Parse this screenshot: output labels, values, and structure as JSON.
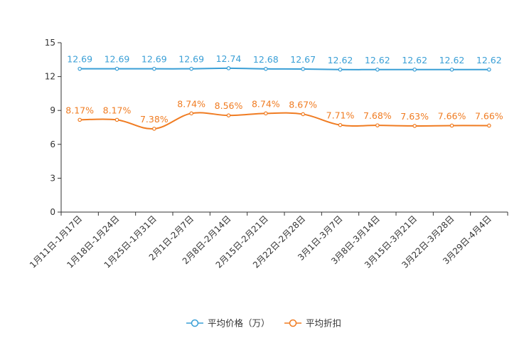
{
  "chart_data": {
    "type": "line",
    "categories": [
      "1月11日-1月17日",
      "1月18日-1月24日",
      "1月25日-1月31日",
      "2月1日-2月7日",
      "2月8日-2月14日",
      "2月15日-2月21日",
      "2月22日-2月28日",
      "3月1日-3月7日",
      "3月8日-3月14日",
      "3月15日-3月21日",
      "3月22日-3月28日",
      "3月29日-4月4日"
    ],
    "series": [
      {
        "name": "平均价格（万）",
        "color": "#3a9fd6",
        "values": [
          12.69,
          12.69,
          12.69,
          12.69,
          12.74,
          12.68,
          12.67,
          12.62,
          12.62,
          12.62,
          12.62,
          12.62
        ],
        "labels": [
          "12.69",
          "12.69",
          "12.69",
          "12.69",
          "12.74",
          "12.68",
          "12.67",
          "12.62",
          "12.62",
          "12.62",
          "12.62",
          "12.62"
        ]
      },
      {
        "name": "平均折扣",
        "color": "#f07c22",
        "values": [
          8.17,
          8.17,
          7.38,
          8.74,
          8.56,
          8.74,
          8.67,
          7.71,
          7.68,
          7.63,
          7.66,
          7.66
        ],
        "labels": [
          "8.17%",
          "8.17%",
          "7.38%",
          "8.74%",
          "8.56%",
          "8.74%",
          "8.67%",
          "7.71%",
          "7.68%",
          "7.63%",
          "7.66%",
          "7.66%"
        ]
      }
    ],
    "yticks": [
      "0",
      "3",
      "6",
      "9",
      "12",
      "15"
    ],
    "ylim": [
      0,
      15
    ],
    "title": "",
    "xlabel": "",
    "ylabel": "",
    "legend_position": "bottom-center",
    "grid": false
  }
}
